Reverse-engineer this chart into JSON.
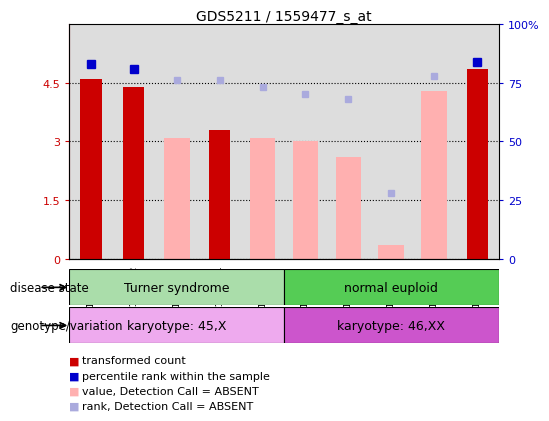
{
  "title": "GDS5211 / 1559477_s_at",
  "samples": [
    "GSM1411021",
    "GSM1411022",
    "GSM1411023",
    "GSM1411024",
    "GSM1411025",
    "GSM1411026",
    "GSM1411027",
    "GSM1411028",
    "GSM1411029",
    "GSM1411030"
  ],
  "transformed_count": [
    4.6,
    4.4,
    null,
    3.3,
    null,
    null,
    null,
    null,
    null,
    4.85
  ],
  "percentile_rank_pct": [
    83,
    81,
    null,
    null,
    null,
    null,
    null,
    null,
    null,
    84
  ],
  "value_absent": [
    null,
    null,
    3.1,
    null,
    3.1,
    3.0,
    2.6,
    0.35,
    4.3,
    null
  ],
  "rank_absent_pct": [
    null,
    null,
    76,
    76,
    73,
    70,
    68,
    28,
    78,
    null
  ],
  "ylim_left": [
    0,
    6
  ],
  "ylim_right": [
    0,
    100
  ],
  "yticks_left": [
    0,
    1.5,
    3.0,
    4.5
  ],
  "yticks_right": [
    0,
    25,
    50,
    75,
    100
  ],
  "ytick_labels_left": [
    "0",
    "1.5",
    "3",
    "4.5"
  ],
  "ytick_labels_right": [
    "0",
    "25",
    "50",
    "75",
    "100%"
  ],
  "bar_color_red": "#cc0000",
  "bar_color_pink": "#ffb0b0",
  "dot_color_blue": "#0000cc",
  "dot_color_lightblue": "#aaaadd",
  "group1_label_disease": "Turner syndrome",
  "group2_label_disease": "normal euploid",
  "group1_label_geno": "karyotype: 45,X",
  "group2_label_geno": "karyotype: 46,XX",
  "disease_row_label": "disease state",
  "geno_row_label": "genotype/variation",
  "color_disease1": "#aaddaa",
  "color_disease2": "#55cc55",
  "color_geno1": "#eeaaee",
  "color_geno2": "#cc55cc",
  "legend_items": [
    {
      "label": "transformed count",
      "color": "#cc0000"
    },
    {
      "label": "percentile rank within the sample",
      "color": "#0000cc"
    },
    {
      "label": "value, Detection Call = ABSENT",
      "color": "#ffb0b0"
    },
    {
      "label": "rank, Detection Call = ABSENT",
      "color": "#aaaadd"
    }
  ],
  "background_color": "#ffffff",
  "sample_bg": "#dddddd"
}
